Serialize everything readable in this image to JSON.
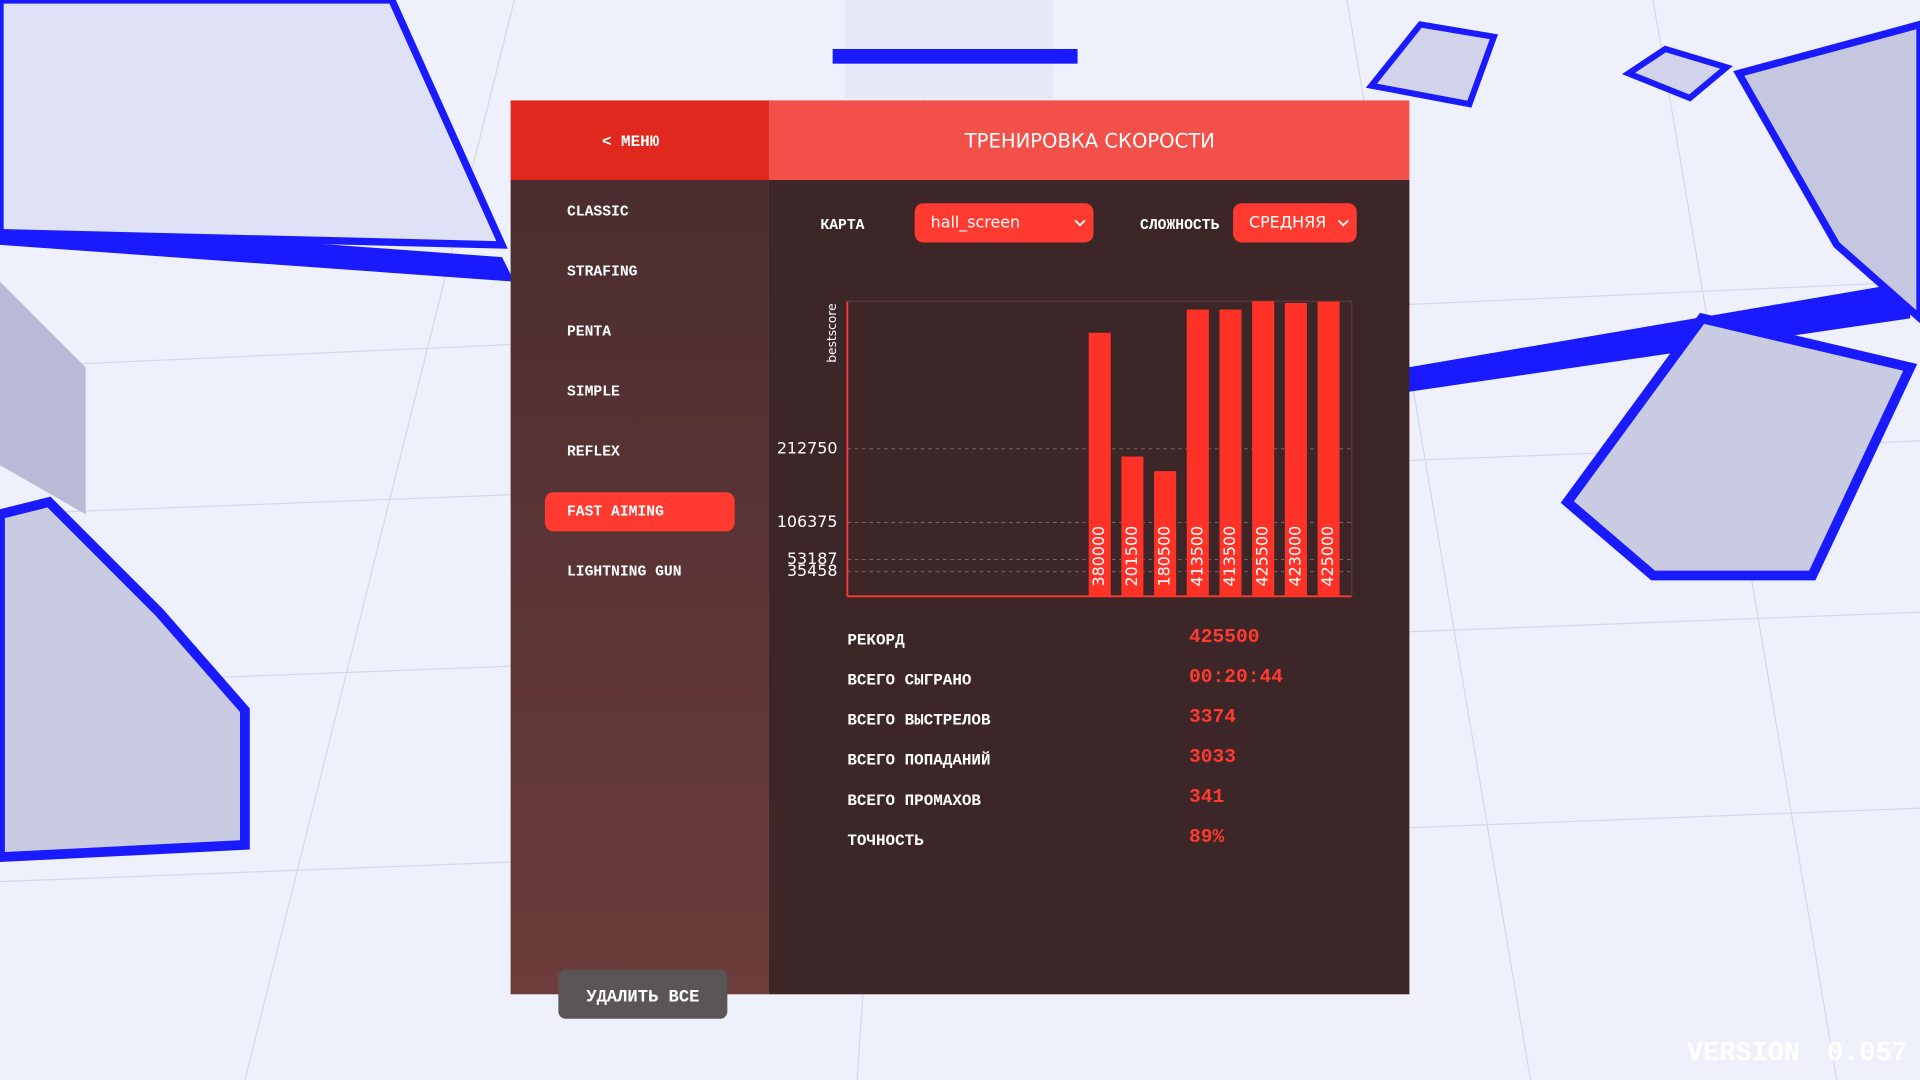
{
  "header": {
    "back": "< МЕНЮ",
    "title": "ТРЕНИРОВКА СКОРОСТИ"
  },
  "menu": {
    "items": [
      "CLASSIC",
      "STRAFING",
      "PENTA",
      "SIMPLE",
      "REFLEX",
      "FAST AIMING",
      "LIGHTNING GUN"
    ],
    "selected": 5
  },
  "filters": {
    "map_label": "КАРТА",
    "map_value": "hall_screen",
    "difficulty_label": "СЛОЖНОСТЬ",
    "difficulty_value": "СРЕДНЯЯ"
  },
  "chart_data": {
    "type": "bar",
    "y_label": "bestscore",
    "color": "#ff3228",
    "values": [
      380000,
      201500,
      180500,
      413500,
      413500,
      425500,
      423000,
      425000
    ],
    "ylim": [
      0,
      425500
    ],
    "yticks": [
      35458,
      53187,
      106375,
      212750
    ],
    "grid": true
  },
  "stats": {
    "rows": [
      [
        "РЕКОРД",
        "425500"
      ],
      [
        "ВСЕГО СЫГРАНО",
        "00:20:44"
      ],
      [
        "ВСЕГО ВЫСТРЕЛОВ",
        "3374"
      ],
      [
        "ВСЕГО ПОПАДАНИЙ",
        "3033"
      ],
      [
        "ВСЕГО ПРОМАХОВ",
        "341"
      ],
      [
        "ТОЧНОСТЬ",
        "89%"
      ]
    ]
  },
  "buttons": {
    "delete_all": "УДАЛИТЬ ВСЕ"
  },
  "version": {
    "label": "VERSION",
    "number": "0.057"
  }
}
